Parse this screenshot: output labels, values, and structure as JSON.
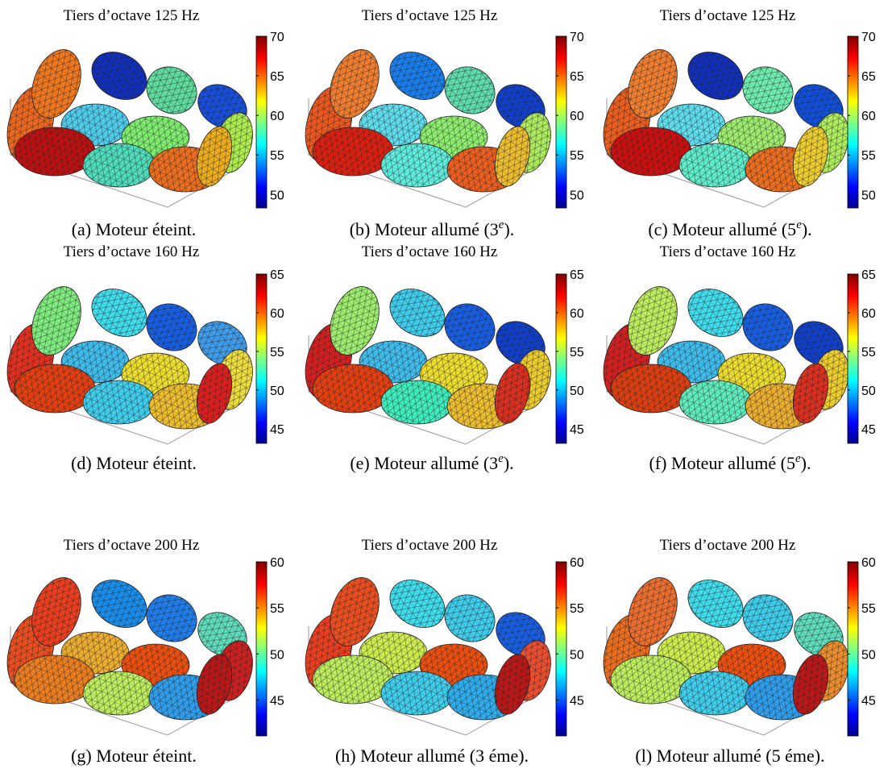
{
  "figure": {
    "panels": [
      {
        "title": "Tiers d’octave 125 Hz",
        "colorbar": {
          "range": [
            48.3,
            70
          ],
          "ticks": [
            50,
            55,
            60,
            65,
            70
          ]
        },
        "caption": {
          "text": "(a) Moteur éteint."
        }
      },
      {
        "title": "Tiers d’octave 125 Hz",
        "colorbar": {
          "range": [
            48.3,
            70
          ],
          "ticks": [
            50,
            55,
            60,
            65,
            70
          ]
        },
        "caption": {
          "text": "(b) Moteur allumé (3",
          "sup": "e",
          "end": ")."
        }
      },
      {
        "title": "Tiers d’octave 125 Hz",
        "colorbar": {
          "range": [
            48.3,
            70
          ],
          "ticks": [
            50,
            55,
            60,
            65,
            70
          ]
        },
        "caption": {
          "text": "(c) Moteur allumé (5",
          "sup": "e",
          "end": ")."
        }
      },
      {
        "title": "Tiers d’octave 160 Hz",
        "colorbar": {
          "range": [
            43.1,
            65
          ],
          "ticks": [
            45,
            50,
            55,
            60,
            65
          ]
        },
        "caption": {
          "text": "(d) Moteur éteint."
        }
      },
      {
        "title": "Tiers d’octave 160 Hz",
        "colorbar": {
          "range": [
            43.1,
            65
          ],
          "ticks": [
            45,
            50,
            55,
            60,
            65
          ]
        },
        "caption": {
          "text": "(e) Moteur allumé (3",
          "sup": "e",
          "end": ")."
        }
      },
      {
        "title": "Tiers d’octave 160 Hz",
        "colorbar": {
          "range": [
            43.1,
            65
          ],
          "ticks": [
            45,
            50,
            55,
            60,
            65
          ]
        },
        "caption": {
          "text": "(f) Moteur allumé (5",
          "sup": "e",
          "end": ")."
        }
      },
      {
        "title": "Tiers d’octave 200 Hz",
        "colorbar": {
          "range": [
            41.1,
            60
          ],
          "ticks": [
            45,
            50,
            55,
            60
          ]
        },
        "caption": {
          "text": "(g) Moteur éteint."
        }
      },
      {
        "title": "Tiers d’octave 200 Hz",
        "colorbar": {
          "range": [
            41.1,
            60
          ],
          "ticks": [
            45,
            50,
            55,
            60
          ]
        },
        "caption": {
          "text": "(h) Moteur allumé (3 éme)."
        }
      },
      {
        "title": "Tiers d’octave 200 Hz",
        "colorbar": {
          "range": [
            41.1,
            60
          ],
          "ticks": [
            45,
            50,
            55,
            60
          ]
        },
        "caption": {
          "text": "(l) Moteur allumé (5 éme)."
        }
      }
    ]
  }
}
